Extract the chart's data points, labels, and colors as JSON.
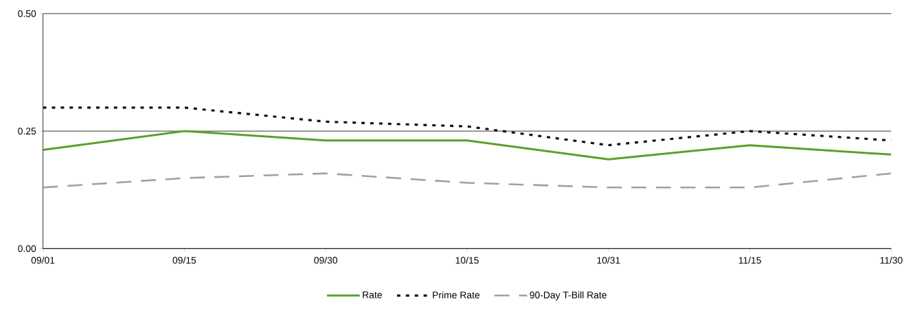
{
  "chart_data": {
    "type": "line",
    "categories": [
      "09/01",
      "09/15",
      "09/30",
      "10/15",
      "10/31",
      "11/15",
      "11/30"
    ],
    "series": [
      {
        "name": "Rate",
        "color": "#5aa02c",
        "line_style": "solid",
        "values": [
          0.21,
          0.25,
          0.23,
          0.23,
          0.19,
          0.22,
          0.2
        ]
      },
      {
        "name": "Prime Rate",
        "color": "#111111",
        "line_style": "dotted",
        "values": [
          0.3,
          0.3,
          0.27,
          0.26,
          0.22,
          0.25,
          0.23
        ]
      },
      {
        "name": "90-Day T-Bill Rate",
        "color": "#a0a0a0",
        "line_style": "dashed",
        "values": [
          0.13,
          0.15,
          0.16,
          0.14,
          0.13,
          0.13,
          0.16
        ]
      }
    ],
    "ylim": [
      0,
      0.5
    ],
    "yticks": [
      {
        "value": 0,
        "label": "0.00"
      },
      {
        "value": 0.25,
        "label": "0.25"
      },
      {
        "value": 0.5,
        "label": "0.50"
      }
    ],
    "grid": "y",
    "legend": "bottom",
    "marker": "none"
  }
}
